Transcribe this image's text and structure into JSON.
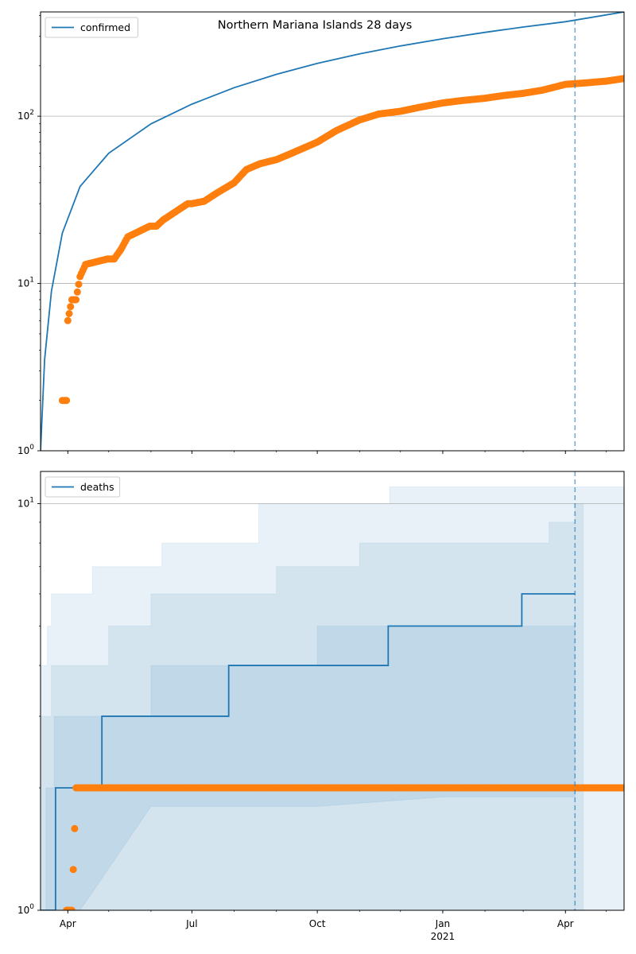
{
  "chart_data": [
    {
      "type": "line",
      "title": "Northern Mariana Islands 28 days",
      "yscale": "log",
      "ylim": [
        1,
        420
      ],
      "xlim": [
        "2020-03-12",
        "2021-05-14"
      ],
      "grid": "y-major",
      "legend": {
        "position": "top-left",
        "entries": [
          "confirmed"
        ]
      },
      "y_tick_labels": [
        "10^0",
        "10^1",
        "10^2"
      ],
      "x_tick_labels": [],
      "vline": "2021-04-08",
      "series": [
        {
          "name": "confirmed",
          "style": "line",
          "color": "#1f77b4",
          "x": [
            "2020-03-12",
            "2020-03-15",
            "2020-03-20",
            "2020-03-28",
            "2020-04-10",
            "2020-05-01",
            "2020-06-01",
            "2020-07-01",
            "2020-08-01",
            "2020-09-01",
            "2020-10-01",
            "2020-11-01",
            "2020-12-01",
            "2021-01-01",
            "2021-02-01",
            "2021-03-01",
            "2021-04-01",
            "2021-05-14"
          ],
          "y": [
            1,
            3.5,
            9,
            20,
            38,
            60,
            90,
            118,
            148,
            178,
            207,
            236,
            263,
            290,
            317,
            341,
            367,
            420
          ]
        },
        {
          "style": "points",
          "color": "#ff7f0e",
          "x": [
            "2020-03-28",
            "2020-03-31",
            "2020-04-01",
            "2020-04-04",
            "2020-04-07",
            "2020-04-10",
            "2020-04-14",
            "2020-04-30",
            "2020-05-05",
            "2020-05-10",
            "2020-05-15",
            "2020-05-31",
            "2020-06-05",
            "2020-06-10",
            "2020-06-28",
            "2020-07-01",
            "2020-07-10",
            "2020-07-20",
            "2020-08-01",
            "2020-08-10",
            "2020-08-20",
            "2020-09-01",
            "2020-09-10",
            "2020-09-20",
            "2020-10-01",
            "2020-10-15",
            "2020-11-01",
            "2020-11-15",
            "2020-12-01",
            "2020-12-15",
            "2021-01-01",
            "2021-01-15",
            "2021-02-01",
            "2021-02-15",
            "2021-03-01",
            "2021-03-15",
            "2021-04-01",
            "2021-04-15",
            "2021-05-01",
            "2021-05-14"
          ],
          "y": [
            2,
            2,
            6,
            8,
            8,
            11,
            13,
            14,
            14,
            16,
            19,
            22,
            22,
            24,
            30,
            30,
            31,
            35,
            40,
            48,
            52,
            55,
            59,
            64,
            70,
            82,
            95,
            103,
            107,
            113,
            120,
            124,
            128,
            133,
            137,
            143,
            155,
            158,
            162,
            168
          ]
        }
      ]
    },
    {
      "type": "line",
      "yscale": "log",
      "ylim": [
        1,
        12
      ],
      "xlim": [
        "2020-03-12",
        "2021-05-14"
      ],
      "grid": "y-major",
      "legend": {
        "position": "top-left",
        "entries": [
          "deaths"
        ]
      },
      "y_tick_labels": [
        "10^0",
        "10^1"
      ],
      "x_tick_labels": [
        "Apr",
        "Jul",
        "Oct",
        "Jan",
        "Apr"
      ],
      "x_tick_sublabels": [
        "",
        "",
        "",
        "2021",
        ""
      ],
      "x_tick_dates": [
        "2020-04-01",
        "2020-07-01",
        "2020-10-01",
        "2021-01-01",
        "2021-04-01"
      ],
      "vline": "2021-04-08",
      "bands": [
        {
          "level": "outer",
          "x": [
            "2020-03-12",
            "2020-03-17",
            "2020-03-20",
            "2020-04-17",
            "2020-04-19",
            "2020-06-07",
            "2020-06-09",
            "2020-08-17",
            "2020-08-19",
            "2020-11-21",
            "2020-11-23",
            "2021-05-14"
          ],
          "upper": [
            4,
            5,
            6,
            6,
            7,
            7,
            8,
            8,
            10,
            10,
            11,
            13
          ],
          "lower": [
            1,
            1,
            1,
            1,
            1,
            1,
            1,
            1,
            1,
            1,
            1,
            1
          ]
        },
        {
          "level": "middle",
          "x": [
            "2020-03-12",
            "2020-03-20",
            "2020-03-27",
            "2020-05-01",
            "2020-06-01",
            "2020-09-01",
            "2020-11-01",
            "2021-01-01",
            "2021-03-20",
            "2021-04-08",
            "2021-04-14",
            "2021-05-14"
          ],
          "upper": [
            3,
            4,
            4,
            5,
            6,
            7,
            8,
            8,
            9,
            10,
            1,
            1
          ],
          "lower": [
            1,
            1,
            1,
            1,
            1,
            1,
            1,
            1,
            1,
            1,
            1,
            1
          ]
        },
        {
          "level": "inner",
          "x": [
            "2020-03-16",
            "2020-03-22",
            "2020-03-30",
            "2020-04-10",
            "2020-06-01",
            "2020-09-01",
            "2020-10-01",
            "2021-01-01",
            "2021-03-01",
            "2021-04-08",
            "2021-04-08",
            "2021-05-14"
          ],
          "upper": [
            2,
            3,
            3,
            3,
            4,
            4,
            5,
            5,
            5,
            6,
            1,
            1
          ],
          "lower": [
            1,
            1,
            1,
            1,
            1.8,
            1.8,
            1.8,
            1.9,
            1.9,
            1.9,
            1,
            1
          ]
        }
      ],
      "series": [
        {
          "name": "deaths",
          "style": "step",
          "color": "#1f77b4",
          "x": [
            "2020-03-12",
            "2020-03-23",
            "2020-04-26",
            "2020-07-28",
            "2020-11-22",
            "2021-02-28",
            "2021-04-08"
          ],
          "y": [
            1,
            2,
            3,
            4,
            5,
            6,
            6
          ]
        },
        {
          "style": "points",
          "color": "#ff7f0e",
          "x": [
            "2020-03-31",
            "2020-04-04",
            "2020-04-07",
            "2021-05-14"
          ],
          "y": [
            1,
            1,
            2,
            2
          ]
        }
      ]
    }
  ]
}
